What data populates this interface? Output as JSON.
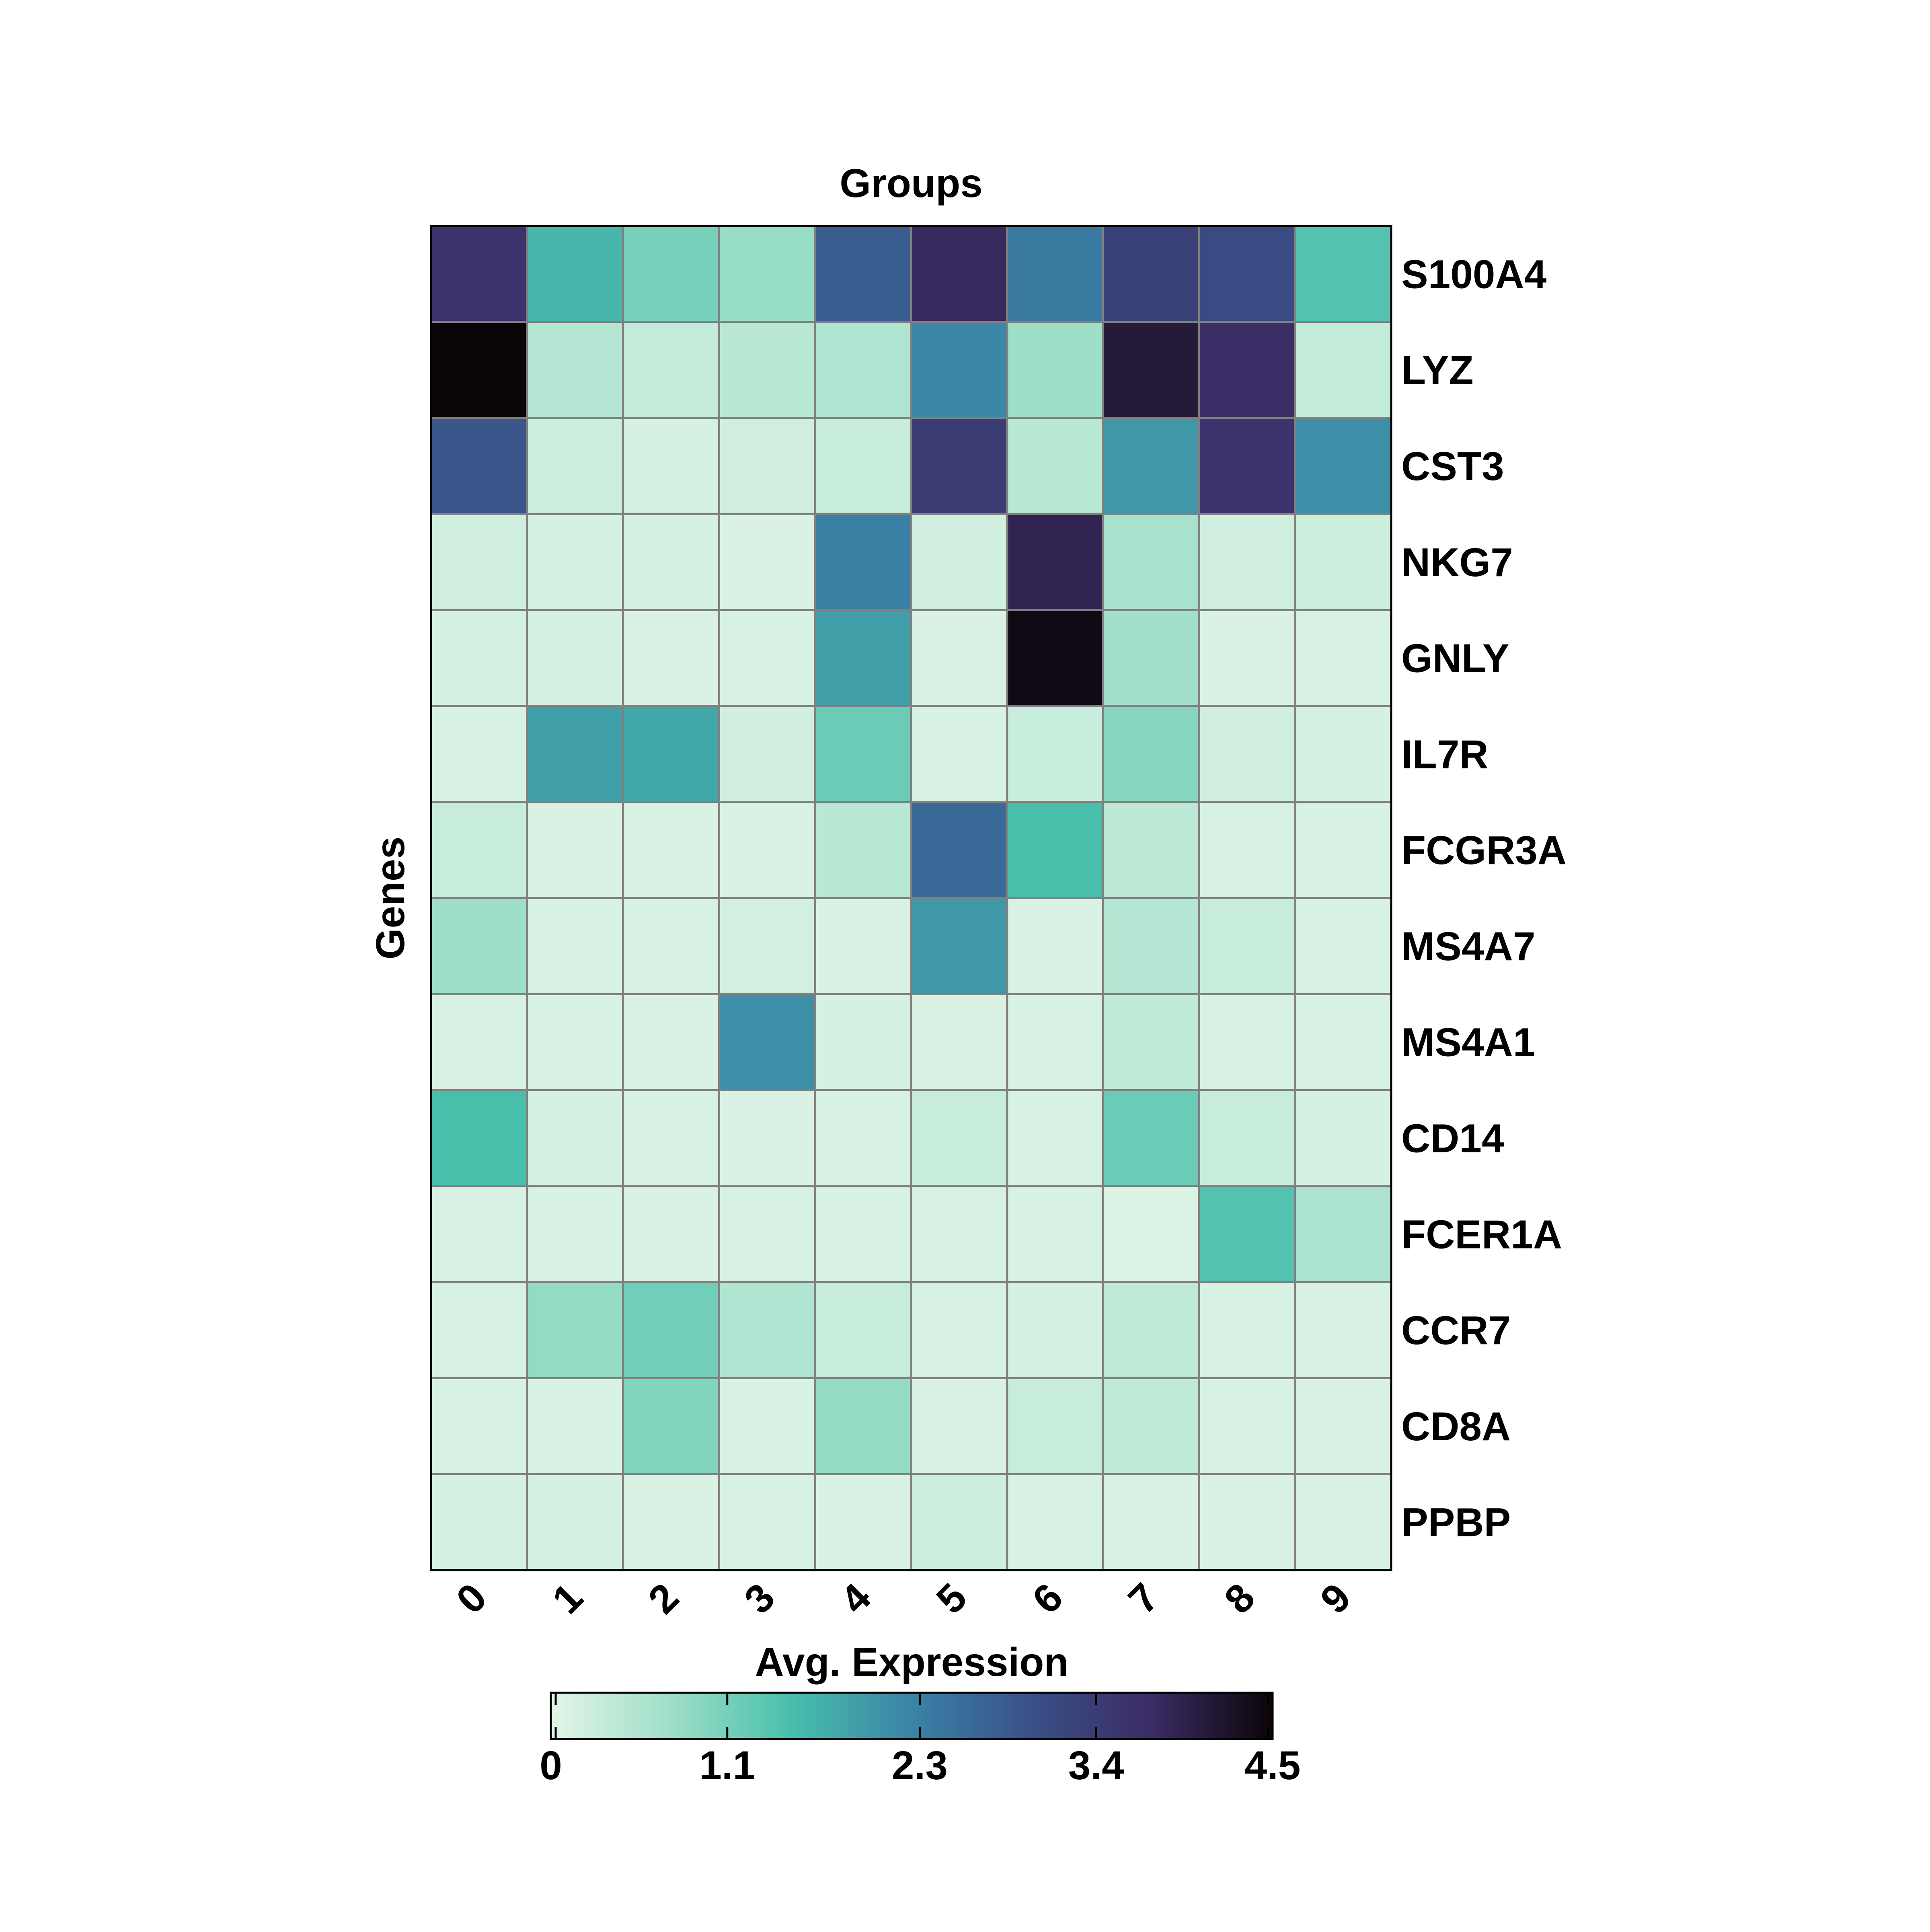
{
  "chart_data": {
    "type": "heatmap",
    "x_label": "Groups",
    "y_label": "Genes",
    "x_categories": [
      "0",
      "1",
      "2",
      "3",
      "4",
      "5",
      "6",
      "7",
      "8",
      "9"
    ],
    "y_categories": [
      "S100A4",
      "LYZ",
      "CST3",
      "NKG7",
      "GNLY",
      "IL7R",
      "FCGR3A",
      "MS4A7",
      "MS4A1",
      "CD14",
      "FCER1A",
      "CCR7",
      "CD8A",
      "PPBP"
    ],
    "values": [
      [
        3.6,
        1.6,
        1.1,
        0.8,
        2.8,
        3.8,
        2.4,
        3.3,
        3.1,
        1.4
      ],
      [
        4.5,
        0.5,
        0.35,
        0.45,
        0.55,
        2.2,
        0.75,
        4.1,
        3.7,
        0.35
      ],
      [
        2.9,
        0.25,
        0.15,
        0.2,
        0.3,
        3.4,
        0.45,
        2.0,
        3.6,
        2.1
      ],
      [
        0.2,
        0.15,
        0.15,
        0.1,
        2.3,
        0.2,
        3.9,
        0.65,
        0.2,
        0.25
      ],
      [
        0.15,
        0.15,
        0.1,
        0.12,
        1.9,
        0.1,
        4.4,
        0.7,
        0.1,
        0.12
      ],
      [
        0.12,
        1.9,
        1.8,
        0.2,
        1.2,
        0.12,
        0.28,
        0.95,
        0.2,
        0.15
      ],
      [
        0.3,
        0.1,
        0.1,
        0.1,
        0.45,
        2.6,
        1.5,
        0.4,
        0.12,
        0.12
      ],
      [
        0.75,
        0.12,
        0.12,
        0.18,
        0.1,
        2.0,
        0.1,
        0.5,
        0.3,
        0.12
      ],
      [
        0.12,
        0.12,
        0.1,
        2.1,
        0.15,
        0.1,
        0.12,
        0.38,
        0.12,
        0.12
      ],
      [
        1.5,
        0.15,
        0.12,
        0.1,
        0.12,
        0.3,
        0.12,
        1.2,
        0.3,
        0.15
      ],
      [
        0.12,
        0.12,
        0.1,
        0.12,
        0.12,
        0.12,
        0.12,
        0.08,
        1.4,
        0.6
      ],
      [
        0.12,
        0.85,
        1.15,
        0.55,
        0.3,
        0.12,
        0.15,
        0.38,
        0.12,
        0.1
      ],
      [
        0.12,
        0.12,
        1.0,
        0.12,
        0.85,
        0.1,
        0.3,
        0.38,
        0.12,
        0.1
      ],
      [
        0.15,
        0.15,
        0.1,
        0.12,
        0.1,
        0.25,
        0.12,
        0.1,
        0.1,
        0.1
      ]
    ],
    "colorbar": {
      "label": "Avg. Expression",
      "min": 0,
      "max": 4.5,
      "ticks": [
        0,
        1.1,
        2.3,
        3.4,
        4.5
      ],
      "tick_labels": [
        "0",
        "1.1",
        "2.3",
        "3.4",
        "4.5"
      ],
      "orientation": "horizontal",
      "position": "bottom"
    },
    "colormap": [
      "#e2f5e8",
      "#9edfc8",
      "#48bfab",
      "#3a83a7",
      "#3a4f86",
      "#3b2c65",
      "#0b0507"
    ],
    "grid": true,
    "grid_color": "#808080"
  }
}
